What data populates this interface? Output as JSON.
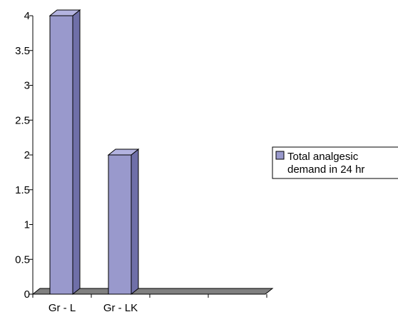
{
  "chart_data": {
    "type": "bar",
    "categories": [
      "Gr - L",
      "Gr - LK",
      "",
      ""
    ],
    "series": [
      {
        "name": "Total analgesic demand in 24 hr",
        "values": [
          4,
          2,
          null,
          null
        ]
      }
    ],
    "y_ticks": [
      "0",
      "0.5",
      "1",
      "1.5",
      "2",
      "2.5",
      "3",
      "3.5",
      "4"
    ],
    "ylim": [
      0,
      4
    ],
    "legend_position": "right",
    "bar_color": "#9999cc",
    "bar_side_color": "#6f6fa8",
    "bar_top_color": "#b3b3e0",
    "floor_color": "#808080",
    "grid": false
  },
  "legend": {
    "line1": "Total analgesic",
    "line2": "demand in 24 hr"
  }
}
